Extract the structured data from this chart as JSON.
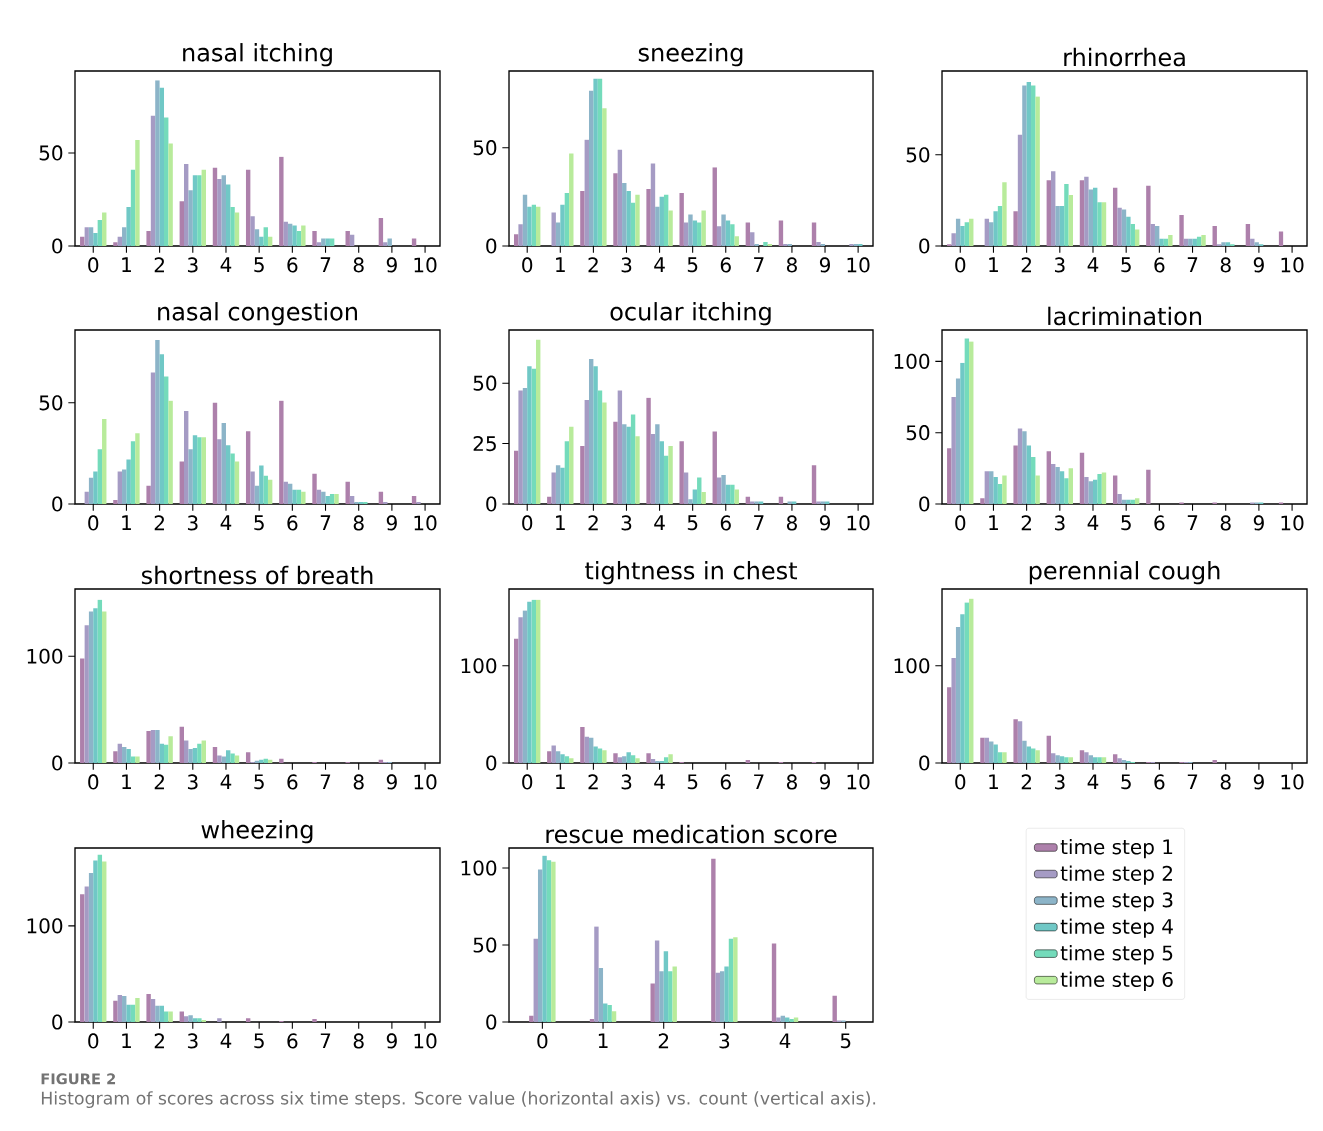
{
  "chart_data": [
    {
      "type": "bar",
      "title": "nasal itching",
      "categories": [
        "0",
        "1",
        "2",
        "3",
        "4",
        "5",
        "6",
        "7",
        "8",
        "9",
        "10"
      ],
      "ylim": [
        0,
        94
      ],
      "yticks": [
        0,
        50
      ],
      "series": [
        {
          "color": "#ad80ab",
          "values": [
            5,
            2,
            8,
            24,
            42,
            41,
            48,
            8,
            8,
            15,
            4
          ]
        },
        {
          "color": "#a59bc4",
          "values": [
            10,
            5,
            70,
            44,
            36,
            16,
            13,
            2,
            6,
            2,
            0
          ]
        },
        {
          "color": "#8cb4c8",
          "values": [
            10,
            10,
            89,
            30,
            38,
            9,
            12,
            4,
            0,
            4,
            0
          ]
        },
        {
          "color": "#70c8c6",
          "values": [
            7,
            21,
            85,
            38,
            33,
            5,
            11,
            4,
            0,
            0,
            0
          ]
        },
        {
          "color": "#74dbbb",
          "values": [
            14,
            41,
            69,
            38,
            21,
            10,
            8,
            4,
            0,
            0,
            0
          ]
        },
        {
          "color": "#b8eb9b",
          "values": [
            18,
            57,
            55,
            41,
            18,
            5,
            11,
            0,
            0,
            0,
            0
          ]
        }
      ]
    },
    {
      "type": "bar",
      "title": "sneezing",
      "categories": [
        "0",
        "1",
        "2",
        "3",
        "4",
        "5",
        "6",
        "7",
        "8",
        "9",
        "10"
      ],
      "ylim": [
        0,
        89
      ],
      "yticks": [
        0,
        50
      ],
      "series": [
        {
          "color": "#ad80ab",
          "values": [
            6,
            0,
            28,
            37,
            29,
            27,
            40,
            12,
            13,
            12,
            0
          ]
        },
        {
          "color": "#a59bc4",
          "values": [
            11,
            17,
            54,
            49,
            42,
            12,
            10,
            7,
            1,
            2,
            1
          ]
        },
        {
          "color": "#8cb4c8",
          "values": [
            26,
            12,
            79,
            32,
            20,
            16,
            16,
            1,
            1,
            1,
            1
          ]
        },
        {
          "color": "#70c8c6",
          "values": [
            20,
            21,
            85,
            28,
            25,
            13,
            13,
            0,
            0,
            0,
            1
          ]
        },
        {
          "color": "#74dbbb",
          "values": [
            21,
            27,
            85,
            22,
            26,
            12,
            11,
            2,
            0,
            0,
            0
          ]
        },
        {
          "color": "#b8eb9b",
          "values": [
            20,
            47,
            70,
            26,
            18,
            18,
            5,
            1,
            0,
            0,
            0
          ]
        }
      ]
    },
    {
      "type": "bar",
      "title": "rhinorrhea",
      "categories": [
        "0",
        "1",
        "2",
        "3",
        "4",
        "5",
        "6",
        "7",
        "8",
        "9",
        "10"
      ],
      "ylim": [
        0,
        96
      ],
      "yticks": [
        0,
        50
      ],
      "series": [
        {
          "color": "#ad80ab",
          "values": [
            1,
            0,
            19,
            36,
            36,
            32,
            33,
            17,
            11,
            12,
            8
          ]
        },
        {
          "color": "#a59bc4",
          "values": [
            7,
            15,
            61,
            41,
            38,
            21,
            12,
            4,
            1,
            4,
            0
          ]
        },
        {
          "color": "#8cb4c8",
          "values": [
            15,
            13,
            88,
            22,
            31,
            20,
            11,
            4,
            2,
            2,
            0
          ]
        },
        {
          "color": "#70c8c6",
          "values": [
            11,
            19,
            90,
            22,
            32,
            16,
            4,
            4,
            2,
            1,
            0
          ]
        },
        {
          "color": "#74dbbb",
          "values": [
            13,
            22,
            88,
            34,
            24,
            12,
            4,
            5,
            1,
            0,
            0
          ]
        },
        {
          "color": "#b8eb9b",
          "values": [
            15,
            35,
            82,
            28,
            24,
            9,
            6,
            6,
            0,
            0,
            0
          ]
        }
      ]
    },
    {
      "type": "bar",
      "title": "nasal congestion",
      "categories": [
        "0",
        "1",
        "2",
        "3",
        "4",
        "5",
        "6",
        "7",
        "8",
        "9",
        "10"
      ],
      "ylim": [
        0,
        86
      ],
      "yticks": [
        0,
        50
      ],
      "series": [
        {
          "color": "#ad80ab",
          "values": [
            0,
            2,
            9,
            21,
            50,
            36,
            51,
            15,
            11,
            6,
            4
          ]
        },
        {
          "color": "#a59bc4",
          "values": [
            6,
            16,
            65,
            46,
            32,
            16,
            11,
            7,
            4,
            1,
            1
          ]
        },
        {
          "color": "#8cb4c8",
          "values": [
            13,
            17,
            81,
            27,
            40,
            9,
            10,
            6,
            1,
            0,
            0
          ]
        },
        {
          "color": "#70c8c6",
          "values": [
            16,
            22,
            74,
            34,
            29,
            19,
            7,
            4,
            1,
            0,
            0
          ]
        },
        {
          "color": "#74dbbb",
          "values": [
            27,
            31,
            63,
            33,
            25,
            14,
            7,
            5,
            1,
            0,
            0
          ]
        },
        {
          "color": "#b8eb9b",
          "values": [
            42,
            35,
            51,
            33,
            21,
            12,
            6,
            5,
            0,
            0,
            0
          ]
        }
      ]
    },
    {
      "type": "bar",
      "title": "ocular itching",
      "categories": [
        "0",
        "1",
        "2",
        "3",
        "4",
        "5",
        "6",
        "7",
        "8",
        "9",
        "10"
      ],
      "ylim": [
        0,
        72
      ],
      "yticks": [
        0,
        25,
        50
      ],
      "series": [
        {
          "color": "#ad80ab",
          "values": [
            22,
            3,
            24,
            34,
            44,
            26,
            30,
            3,
            3,
            16,
            0
          ]
        },
        {
          "color": "#a59bc4",
          "values": [
            47,
            13,
            43,
            47,
            29,
            13,
            11,
            1,
            0,
            1,
            0
          ]
        },
        {
          "color": "#8cb4c8",
          "values": [
            48,
            16,
            60,
            33,
            33,
            2,
            12,
            1,
            1,
            1,
            0
          ]
        },
        {
          "color": "#70c8c6",
          "values": [
            57,
            15,
            57,
            32,
            26,
            6,
            8,
            1,
            1,
            1,
            0
          ]
        },
        {
          "color": "#74dbbb",
          "values": [
            56,
            26,
            47,
            37,
            20,
            11,
            8,
            0,
            0,
            0,
            0
          ]
        },
        {
          "color": "#b8eb9b",
          "values": [
            68,
            32,
            42,
            28,
            24,
            5,
            6,
            0,
            0,
            0,
            0
          ]
        }
      ]
    },
    {
      "type": "bar",
      "title": "lacrimination",
      "categories": [
        "0",
        "1",
        "2",
        "3",
        "4",
        "5",
        "6",
        "7",
        "8",
        "9",
        "10"
      ],
      "ylim": [
        0,
        122
      ],
      "yticks": [
        0,
        50,
        100
      ],
      "series": [
        {
          "color": "#ad80ab",
          "values": [
            39,
            4,
            41,
            37,
            36,
            20,
            24,
            1,
            1,
            0,
            1
          ]
        },
        {
          "color": "#a59bc4",
          "values": [
            75,
            23,
            53,
            28,
            19,
            7,
            0,
            0,
            0,
            1,
            0
          ]
        },
        {
          "color": "#8cb4c8",
          "values": [
            88,
            23,
            51,
            26,
            16,
            3,
            0,
            0,
            0,
            1,
            0
          ]
        },
        {
          "color": "#70c8c6",
          "values": [
            99,
            19,
            41,
            23,
            17,
            3,
            0,
            0,
            0,
            1,
            0
          ]
        },
        {
          "color": "#74dbbb",
          "values": [
            116,
            14,
            33,
            18,
            21,
            3,
            0,
            0,
            0,
            0,
            0
          ]
        },
        {
          "color": "#b8eb9b",
          "values": [
            114,
            20,
            20,
            25,
            22,
            4,
            0,
            0,
            0,
            0,
            0
          ]
        }
      ]
    },
    {
      "type": "bar",
      "title": "shortness of breath",
      "categories": [
        "0",
        "1",
        "2",
        "3",
        "4",
        "5",
        "6",
        "7",
        "8",
        "9",
        "10"
      ],
      "ylim": [
        0,
        163
      ],
      "yticks": [
        0,
        100
      ],
      "series": [
        {
          "color": "#ad80ab",
          "values": [
            98,
            11,
            30,
            34,
            15,
            10,
            4,
            1,
            1,
            3,
            0
          ]
        },
        {
          "color": "#a59bc4",
          "values": [
            129,
            18,
            31,
            21,
            7,
            1,
            0,
            0,
            0,
            1,
            0
          ]
        },
        {
          "color": "#8cb4c8",
          "values": [
            142,
            15,
            31,
            13,
            6,
            2,
            0,
            0,
            0,
            1,
            0
          ]
        },
        {
          "color": "#70c8c6",
          "values": [
            145,
            13,
            18,
            14,
            12,
            3,
            0,
            0,
            0,
            0,
            0
          ]
        },
        {
          "color": "#74dbbb",
          "values": [
            153,
            6,
            17,
            18,
            9,
            4,
            0,
            0,
            0,
            0,
            0
          ]
        },
        {
          "color": "#b8eb9b",
          "values": [
            142,
            6,
            25,
            21,
            7,
            3,
            0,
            0,
            0,
            0,
            0
          ]
        }
      ]
    },
    {
      "type": "bar",
      "title": "tightness in chest",
      "categories": [
        "0",
        "1",
        "2",
        "3",
        "4",
        "5",
        "6",
        "7",
        "8",
        "9",
        "10"
      ],
      "ylim": [
        0,
        179
      ],
      "yticks": [
        0,
        100
      ],
      "series": [
        {
          "color": "#ad80ab",
          "values": [
            128,
            12,
            37,
            10,
            10,
            1,
            0,
            3,
            1,
            1,
            0
          ]
        },
        {
          "color": "#a59bc4",
          "values": [
            150,
            18,
            27,
            6,
            4,
            0,
            0,
            0,
            0,
            0,
            0
          ]
        },
        {
          "color": "#8cb4c8",
          "values": [
            157,
            12,
            26,
            7,
            2,
            0,
            0,
            0,
            0,
            0,
            0
          ]
        },
        {
          "color": "#70c8c6",
          "values": [
            166,
            9,
            17,
            11,
            2,
            0,
            0,
            0,
            0,
            0,
            0
          ]
        },
        {
          "color": "#74dbbb",
          "values": [
            168,
            7,
            15,
            8,
            6,
            0,
            0,
            0,
            0,
            0,
            0
          ]
        },
        {
          "color": "#b8eb9b",
          "values": [
            168,
            5,
            13,
            5,
            9,
            0,
            0,
            0,
            0,
            0,
            0
          ]
        }
      ]
    },
    {
      "type": "bar",
      "title": "perennial cough",
      "categories": [
        "0",
        "1",
        "2",
        "3",
        "4",
        "5",
        "6",
        "7",
        "8",
        "9",
        "10"
      ],
      "ylim": [
        0,
        179
      ],
      "yticks": [
        0,
        100
      ],
      "series": [
        {
          "color": "#ad80ab",
          "values": [
            78,
            26,
            45,
            28,
            13,
            9,
            1,
            1,
            3,
            0,
            0
          ]
        },
        {
          "color": "#a59bc4",
          "values": [
            108,
            26,
            43,
            10,
            11,
            5,
            1,
            1,
            0,
            0,
            0
          ]
        },
        {
          "color": "#8cb4c8",
          "values": [
            140,
            22,
            23,
            8,
            8,
            3,
            0,
            1,
            0,
            0,
            0
          ]
        },
        {
          "color": "#70c8c6",
          "values": [
            153,
            19,
            17,
            7,
            6,
            2,
            0,
            0,
            0,
            0,
            0
          ]
        },
        {
          "color": "#74dbbb",
          "values": [
            165,
            11,
            15,
            6,
            6,
            1,
            0,
            0,
            0,
            0,
            0
          ]
        },
        {
          "color": "#b8eb9b",
          "values": [
            169,
            11,
            13,
            6,
            6,
            0,
            0,
            0,
            0,
            0,
            0
          ]
        }
      ]
    },
    {
      "type": "bar",
      "title": "wheezing",
      "categories": [
        "0",
        "1",
        "2",
        "3",
        "4",
        "5",
        "6",
        "7",
        "8",
        "9",
        "10"
      ],
      "ylim": [
        0,
        181
      ],
      "yticks": [
        0,
        100
      ],
      "series": [
        {
          "color": "#ad80ab",
          "values": [
            133,
            22,
            29,
            11,
            0,
            4,
            1,
            3,
            0,
            0,
            0
          ]
        },
        {
          "color": "#a59bc4",
          "values": [
            141,
            28,
            24,
            6,
            4,
            0,
            0,
            0,
            0,
            0,
            0
          ]
        },
        {
          "color": "#8cb4c8",
          "values": [
            155,
            27,
            17,
            7,
            0,
            0,
            0,
            0,
            0,
            0,
            0
          ]
        },
        {
          "color": "#70c8c6",
          "values": [
            168,
            18,
            17,
            4,
            0,
            0,
            0,
            0,
            0,
            0,
            0
          ]
        },
        {
          "color": "#74dbbb",
          "values": [
            174,
            18,
            11,
            4,
            0,
            0,
            0,
            0,
            0,
            0,
            0
          ]
        },
        {
          "color": "#b8eb9b",
          "values": [
            167,
            25,
            11,
            2,
            0,
            0,
            0,
            0,
            0,
            0,
            0
          ]
        }
      ]
    },
    {
      "type": "bar",
      "title": "rescue medication score",
      "categories": [
        "0",
        "1",
        "2",
        "3",
        "4",
        "5"
      ],
      "ylim": [
        0,
        113
      ],
      "yticks": [
        0,
        50,
        100
      ],
      "legend": "right",
      "annotations": [
        "FIGURE 2",
        "Histogram of scores across six time steps. Score value (horizontal axis) vs. count (vertical axis)."
      ],
      "series": [
        {
          "name": "time step 1",
          "color": "#ad80ab",
          "values": [
            4,
            2,
            25,
            106,
            51,
            17
          ]
        },
        {
          "name": "time step 2",
          "color": "#a59bc4",
          "values": [
            54,
            62,
            53,
            32,
            3,
            1
          ]
        },
        {
          "name": "time step 3",
          "color": "#8cb4c8",
          "values": [
            99,
            35,
            33,
            33,
            4,
            1
          ]
        },
        {
          "name": "time step 4",
          "color": "#70c8c6",
          "values": [
            108,
            12,
            46,
            36,
            3,
            0
          ]
        },
        {
          "name": "time step 5",
          "color": "#74dbbb",
          "values": [
            105,
            11,
            33,
            54,
            2,
            0
          ]
        },
        {
          "name": "time step 6",
          "color": "#b8eb9b",
          "values": [
            104,
            7,
            36,
            55,
            3,
            0
          ]
        }
      ]
    }
  ]
}
